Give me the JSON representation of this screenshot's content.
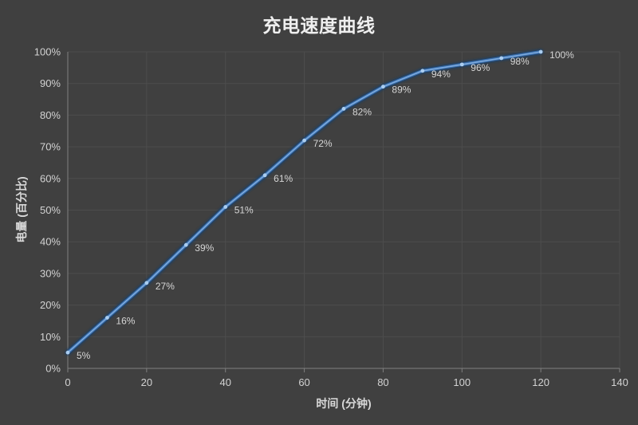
{
  "title": "充电速度曲线",
  "chart_data": {
    "type": "line",
    "title": "充电速度曲线",
    "xlabel": "时间 (分钟)",
    "ylabel": "电量 (百分比)",
    "x": [
      0,
      10,
      20,
      30,
      40,
      50,
      60,
      70,
      80,
      90,
      100,
      110,
      120
    ],
    "values": [
      5,
      16,
      27,
      39,
      51,
      61,
      72,
      82,
      89,
      94,
      96,
      98,
      100
    ],
    "point_labels": [
      "5%",
      "16%",
      "27%",
      "39%",
      "51%",
      "61%",
      "72%",
      "82%",
      "89%",
      "94%",
      "96%",
      "98%",
      "100%"
    ],
    "xlim": [
      0,
      140
    ],
    "ylim": [
      0,
      100
    ],
    "x_axis": {
      "tick_values": [
        0,
        20,
        40,
        60,
        80,
        100,
        120,
        140
      ],
      "tick_labels": [
        "0",
        "20",
        "40",
        "60",
        "80",
        "100",
        "120",
        "140"
      ]
    },
    "y_axis": {
      "tick_values": [
        0,
        10,
        20,
        30,
        40,
        50,
        60,
        70,
        80,
        90,
        100
      ],
      "tick_labels": [
        "0%",
        "10%",
        "20%",
        "30%",
        "40%",
        "50%",
        "60%",
        "70%",
        "80%",
        "90%",
        "100%"
      ]
    },
    "grid": true,
    "legend": false,
    "colors": {
      "background": "#404040",
      "gridline": "#4d4d4d",
      "axis_line": "#7f7f7f",
      "tick_text": "#d2d2d2",
      "title_text": "#efefef",
      "data_label_text": "#d6d6d6",
      "line_glow": "#1c3f66",
      "line_main": "#3a6fae",
      "line_core": "#86b1e2",
      "marker": "#aacdf0"
    }
  }
}
